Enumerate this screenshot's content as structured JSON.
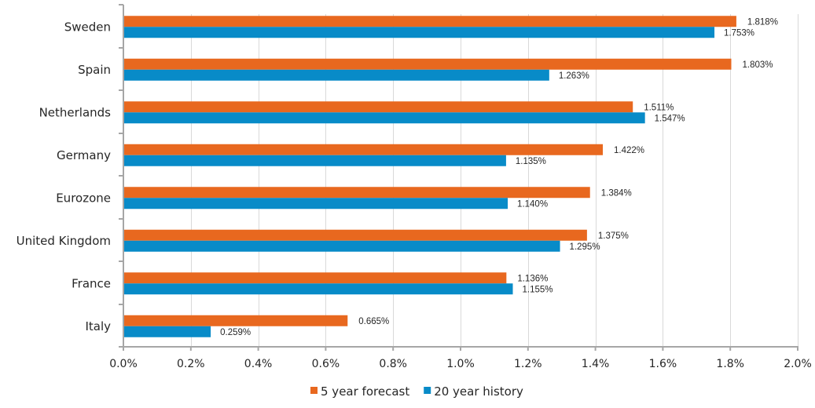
{
  "chart_data": {
    "type": "bar",
    "orientation": "horizontal",
    "title": "",
    "xlabel": "",
    "ylabel": "",
    "categories": [
      "Sweden",
      "Spain",
      "Netherlands",
      "Germany",
      "Eurozone",
      "United Kingdom",
      "France",
      "Italy"
    ],
    "series": [
      {
        "name": "5 year forecast",
        "color": "#e8681f",
        "values": [
          1.818,
          1.803,
          1.511,
          1.422,
          1.384,
          1.375,
          1.136,
          0.665
        ],
        "labels": [
          "1.818%",
          "1.803%",
          "1.511%",
          "1.422%",
          "1.384%",
          "1.375%",
          "1.136%",
          "0.665%"
        ]
      },
      {
        "name": "20 year history",
        "color": "#088bc8",
        "values": [
          1.753,
          1.263,
          1.547,
          1.135,
          1.14,
          1.295,
          1.155,
          0.259
        ],
        "labels": [
          "1.753%",
          "1.263%",
          "1.547%",
          "1.135%",
          "1.140%",
          "1.295%",
          "1.155%",
          "0.259%"
        ]
      }
    ],
    "xlim": [
      0,
      2.0
    ],
    "x_ticks": [
      0,
      0.2,
      0.4,
      0.6,
      0.8,
      1.0,
      1.2,
      1.4,
      1.6,
      1.8,
      2.0
    ],
    "x_tick_labels": [
      "0.0%",
      "0.2%",
      "0.4%",
      "0.6%",
      "0.8%",
      "1.0%",
      "1.2%",
      "1.4%",
      "1.6%",
      "1.8%",
      "2.0%"
    ],
    "grid": "vertical",
    "legend": "bottom-center"
  }
}
